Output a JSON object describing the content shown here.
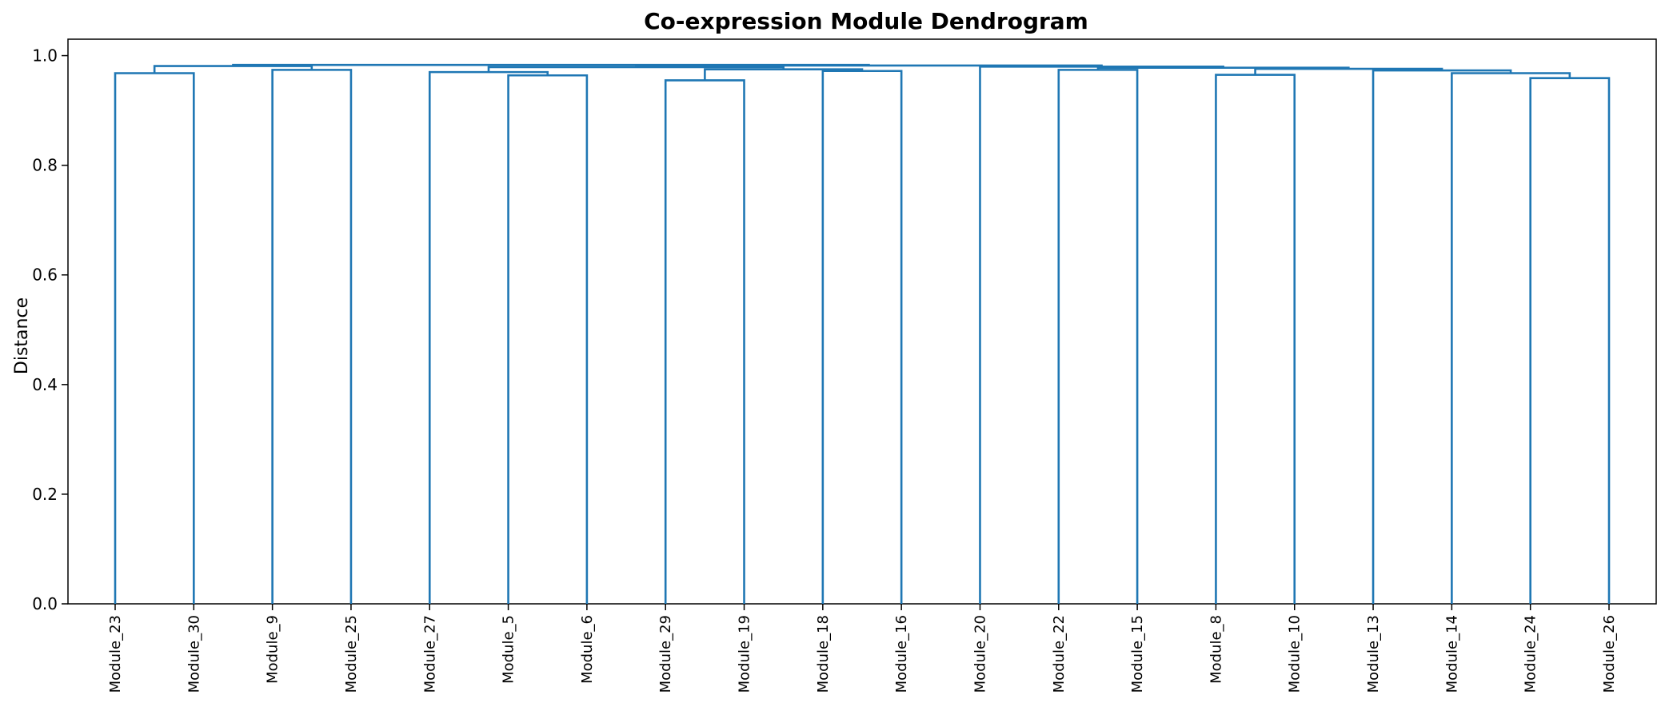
{
  "chart_data": {
    "type": "dendrogram",
    "title": "Co-expression Module Dendrogram",
    "xlabel": "",
    "ylabel": "Distance",
    "ylim": [
      0,
      1.03
    ],
    "yticks": [
      "0.0",
      "0.2",
      "0.4",
      "0.6",
      "0.8",
      "1.0"
    ],
    "leaves": [
      "Module_23",
      "Module_30",
      "Module_9",
      "Module_25",
      "Module_27",
      "Module_5",
      "Module_6",
      "Module_29",
      "Module_19",
      "Module_18",
      "Module_16",
      "Module_20",
      "Module_22",
      "Module_15",
      "Module_8",
      "Module_10",
      "Module_13",
      "Module_14",
      "Module_24",
      "Module_26"
    ],
    "merges": [
      {
        "left": 0,
        "right": 1,
        "height": 0.968
      },
      {
        "left": 2,
        "right": 3,
        "height": 0.974
      },
      {
        "left": "c0",
        "right": "c1",
        "height": 0.981
      },
      {
        "left": 5,
        "right": 6,
        "height": 0.964
      },
      {
        "left": 4,
        "right": "c3",
        "height": 0.97
      },
      {
        "left": 7,
        "right": 8,
        "height": 0.955
      },
      {
        "left": 9,
        "right": 10,
        "height": 0.972
      },
      {
        "left": "c5",
        "right": "c6",
        "height": 0.975
      },
      {
        "left": "c4",
        "right": "c7",
        "height": 0.979
      },
      {
        "left": 12,
        "right": 13,
        "height": 0.974
      },
      {
        "left": 14,
        "right": 15,
        "height": 0.965
      },
      {
        "left": 18,
        "right": 19,
        "height": 0.959
      },
      {
        "left": 17,
        "right": "c11",
        "height": 0.968
      },
      {
        "left": 16,
        "right": "c12",
        "height": 0.973
      },
      {
        "left": "c10",
        "right": "c13",
        "height": 0.976
      },
      {
        "left": "c9",
        "right": "c14",
        "height": 0.978
      },
      {
        "left": 11,
        "right": "c15",
        "height": 0.98
      },
      {
        "left": "c8",
        "right": "c16",
        "height": 0.982
      },
      {
        "left": "c2",
        "right": "c17",
        "height": 0.983
      }
    ],
    "grid": false,
    "legend": "none",
    "color": "#1f77b4"
  }
}
